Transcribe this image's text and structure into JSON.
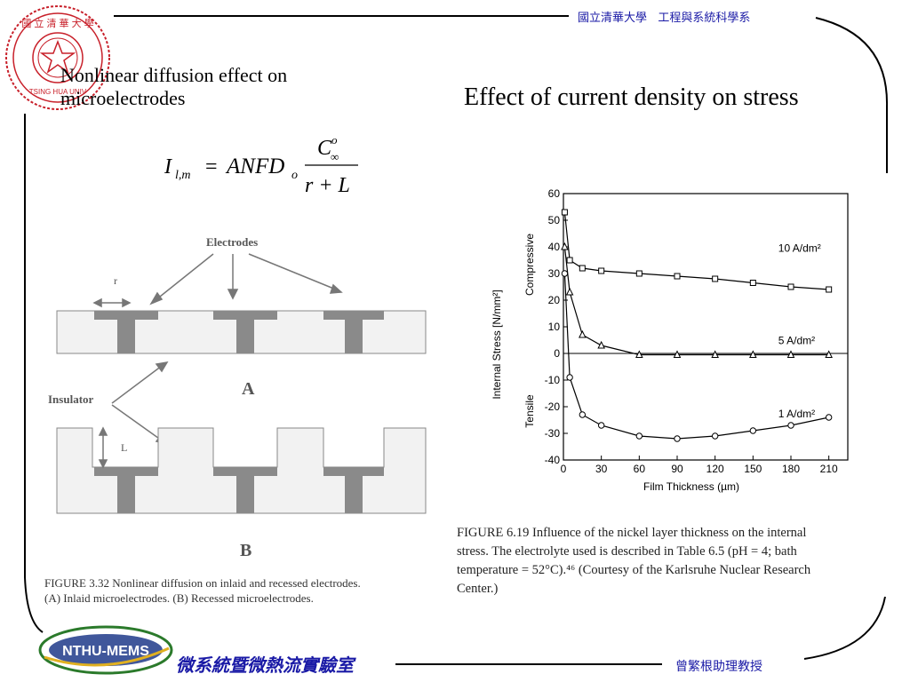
{
  "header": {
    "university": "國立清華大學",
    "department": "工程與系統科學系",
    "seal_text": "國立清華大學 NATIONAL TSING HUA UNIVERSITY"
  },
  "left": {
    "title_line1": "Nonlinear diffusion effect on",
    "title_line2": "microelectrodes",
    "equation": {
      "lhs": "I",
      "lhs_sub": "l,m",
      "rhs": "ANFD",
      "rhs_sub": "o",
      "num": "C",
      "num_sup": "o",
      "num_sub": "∞",
      "den": "r + L"
    },
    "figure": {
      "label_electrodes": "Electrodes",
      "label_r": "r",
      "label_insulator": "Insulator",
      "label_L": "L",
      "panel_a": "A",
      "panel_b": "B",
      "caption_line1": "FIGURE 3.32   Nonlinear diffusion on inlaid and recessed electrodes.",
      "caption_line2": "(A) Inlaid microelectrodes. (B) Recessed microelectrodes."
    }
  },
  "right": {
    "title": "Effect of current density on stress",
    "caption_lines": [
      "FIGURE 6.19   Influence of the nickel layer thickness on the internal",
      "stress. The electrolyte used is described in Table 6.5 (pH = 4; bath",
      "temperature = 52°C).⁴⁶ (Courtesy of the Karlsruhe Nuclear Research",
      "Center.)"
    ]
  },
  "chart_data": {
    "type": "line",
    "xlabel": "Film Thickness (µm)",
    "ylabel": "Internal Stress [N/mm²]",
    "ylabel_top": "Compressive",
    "ylabel_bottom": "Tensile",
    "xlim": [
      0,
      225
    ],
    "ylim": [
      -40,
      60
    ],
    "xticks": [
      0,
      30,
      60,
      90,
      120,
      150,
      180,
      210
    ],
    "yticks": [
      60,
      50,
      40,
      30,
      20,
      10,
      0,
      -10,
      -20,
      -30,
      -40
    ],
    "series": [
      {
        "name": "10 A/dm²",
        "marker": "square",
        "x": [
          1,
          5,
          15,
          30,
          60,
          90,
          120,
          150,
          180,
          210
        ],
        "y": [
          53,
          35,
          32,
          31,
          30,
          29,
          28,
          26.5,
          25,
          24
        ]
      },
      {
        "name": "5 A/dm²",
        "marker": "triangle",
        "x": [
          1,
          5,
          15,
          30,
          60,
          90,
          120,
          150,
          180,
          210
        ],
        "y": [
          40,
          23,
          7,
          3,
          -0.5,
          -0.5,
          -0.5,
          -0.5,
          -0.5,
          -0.5
        ]
      },
      {
        "name": "1 A/dm²",
        "marker": "circle",
        "x": [
          1,
          5,
          15,
          30,
          60,
          90,
          120,
          150,
          180,
          210
        ],
        "y": [
          30,
          -9,
          -23,
          -27,
          -31,
          -32,
          -31,
          -29,
          -27,
          -24
        ]
      }
    ]
  },
  "footer": {
    "lab_logo_text": "NTHU-MEMS",
    "lab_name": "微系統暨微熱流實驗室",
    "professor": "曾繁根助理教授"
  }
}
